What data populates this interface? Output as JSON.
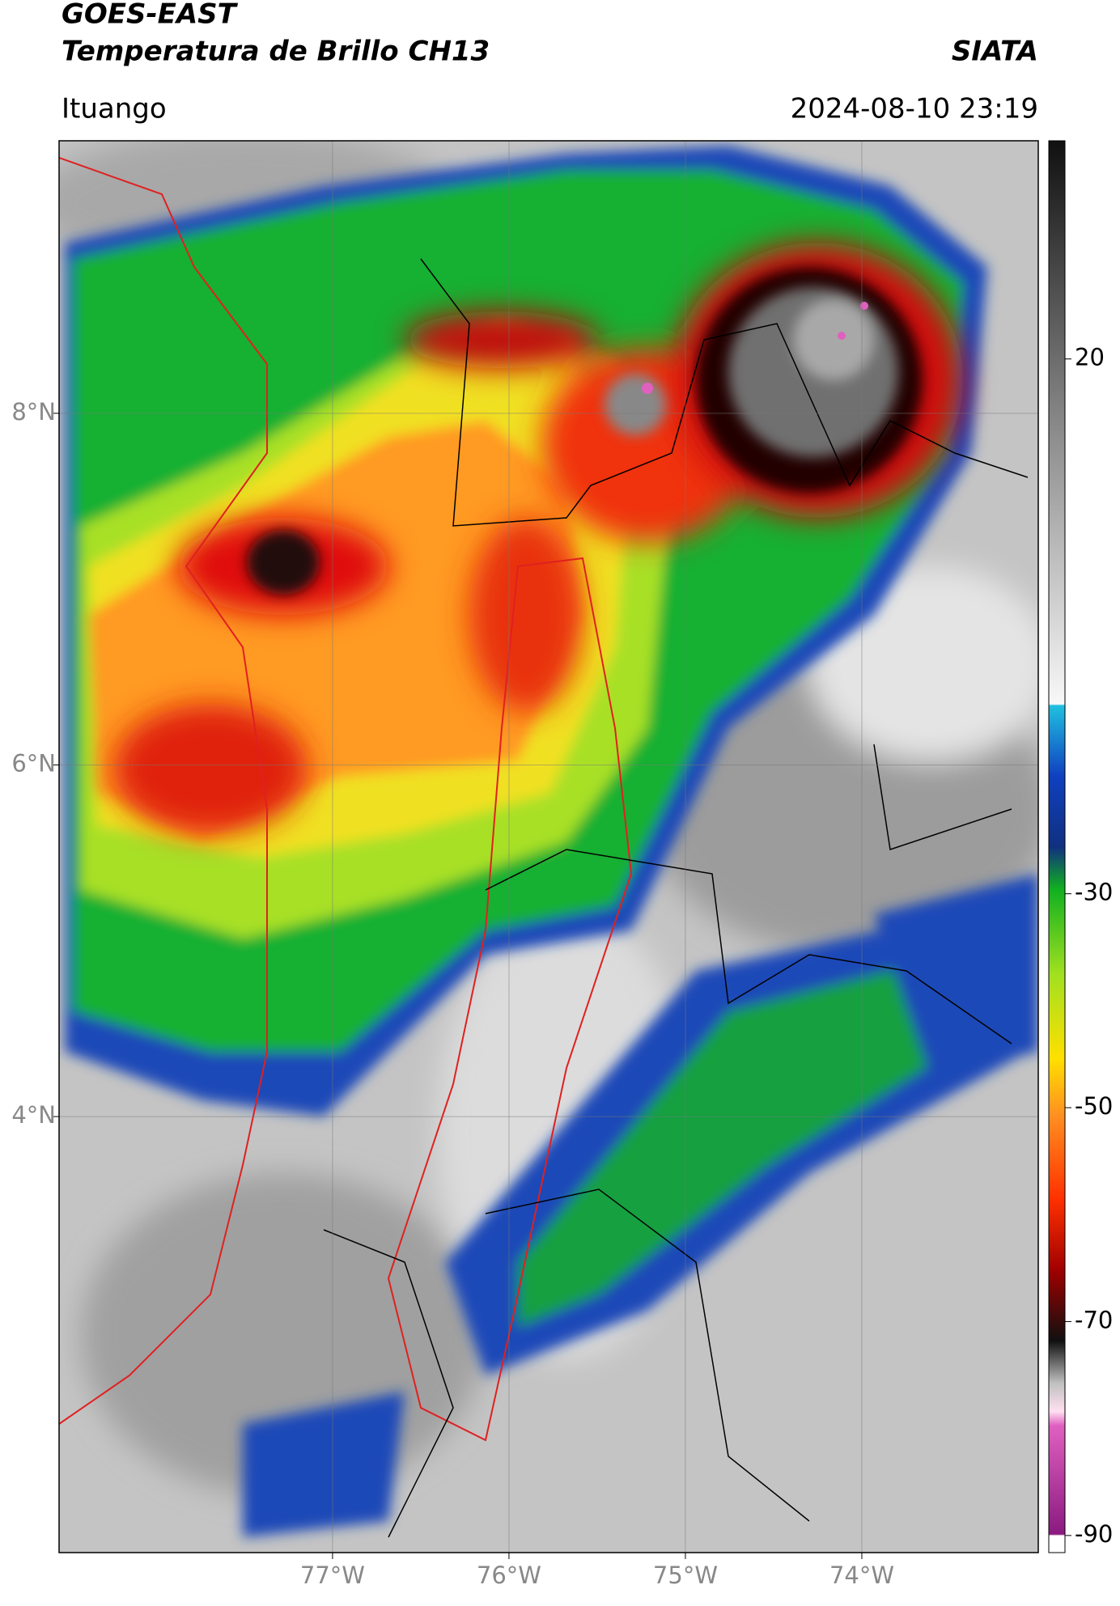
{
  "header": {
    "title_line1": "GOES-EAST",
    "title_line2": "Temperatura de Brillo CH13",
    "source": "SIATA",
    "location": "Ituango",
    "datetime": "2024-08-10 23:19"
  },
  "map": {
    "xlim": [
      -78.55,
      -73.0
    ],
    "ylim": [
      1.52,
      9.55
    ],
    "xticks": [
      {
        "value": -77,
        "label": "77°W"
      },
      {
        "value": -76,
        "label": "76°W"
      },
      {
        "value": -75,
        "label": "75°W"
      },
      {
        "value": -74,
        "label": "74°W"
      }
    ],
    "yticks": [
      {
        "value": 8,
        "label": "8°N"
      },
      {
        "value": 6,
        "label": "6°N"
      },
      {
        "value": 4,
        "label": "4°N"
      }
    ]
  },
  "colorbar": {
    "clim": [
      -91.6,
      40.4
    ],
    "ticks": [
      20,
      -30,
      -50,
      -70,
      -90
    ]
  }
}
